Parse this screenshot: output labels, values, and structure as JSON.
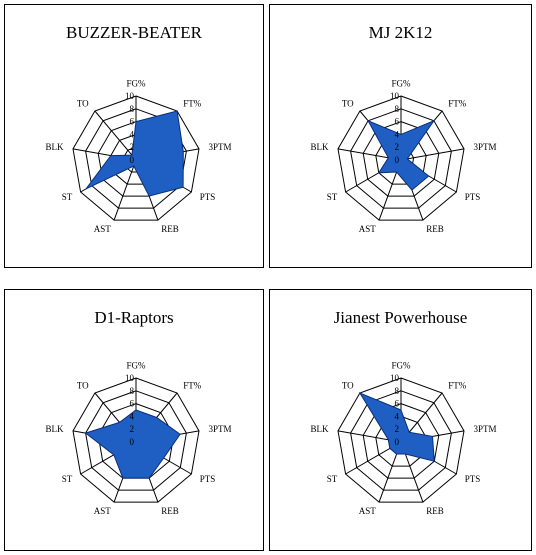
{
  "chart_data": [
    {
      "type": "radar",
      "title": "BUZZER-BEATER",
      "axes": [
        "FG%",
        "FT%",
        "3PTM",
        "PTS",
        "REB",
        "AST",
        "ST",
        "BLK",
        "TO"
      ],
      "range": [
        0,
        10
      ],
      "ticks": [
        0,
        2,
        4,
        6,
        8,
        10
      ],
      "values": [
        6,
        10,
        7.5,
        8.5,
        6,
        1,
        9,
        4,
        1
      ],
      "color": "#1f5fc4"
    },
    {
      "type": "radar",
      "title": "MJ 2K12",
      "axes": [
        "FG%",
        "FT%",
        "3PTM",
        "PTS",
        "REB",
        "AST",
        "ST",
        "BLK",
        "TO"
      ],
      "range": [
        0,
        10
      ],
      "ticks": [
        0,
        2,
        4,
        6,
        8,
        10
      ],
      "values": [
        4,
        8,
        1,
        5,
        5,
        2,
        4,
        2,
        8
      ],
      "color": "#1f5fc4"
    },
    {
      "type": "radar",
      "title": "D1-Raptors",
      "axes": [
        "FG%",
        "FT%",
        "3PTM",
        "PTS",
        "REB",
        "AST",
        "ST",
        "BLK",
        "TO"
      ],
      "range": [
        0,
        10
      ],
      "ticks": [
        0,
        2,
        4,
        6,
        8,
        10
      ],
      "values": [
        5,
        5,
        7,
        5,
        6,
        6,
        4,
        8,
        4
      ],
      "color": "#1f5fc4"
    },
    {
      "type": "radar",
      "title": "Jianest Powerhouse",
      "axes": [
        "FG%",
        "FT%",
        "3PTM",
        "PTS",
        "REB",
        "AST",
        "ST",
        "BLK",
        "TO"
      ],
      "range": [
        0,
        10
      ],
      "ticks": [
        0,
        2,
        4,
        6,
        8,
        10
      ],
      "values": [
        5,
        2,
        5,
        6,
        2,
        2,
        2,
        2,
        10
      ],
      "color": "#1f5fc4"
    }
  ]
}
